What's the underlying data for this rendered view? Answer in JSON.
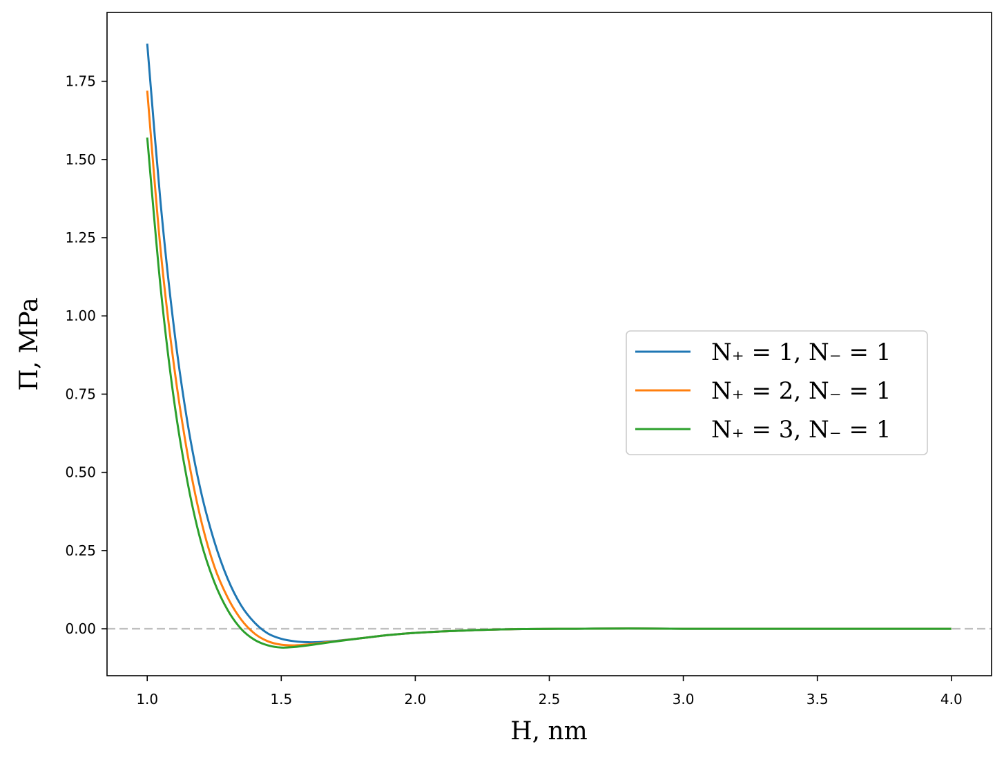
{
  "chart_data": {
    "type": "line",
    "xlabel": "H, nm",
    "ylabel": "Π, MPa",
    "xlim": [
      0.85,
      4.15
    ],
    "ylim": [
      -0.15,
      1.97
    ],
    "xticks": [
      1.0,
      1.5,
      2.0,
      2.5,
      3.0,
      3.5,
      4.0
    ],
    "xtick_labels": [
      "1.0",
      "1.5",
      "2.0",
      "2.5",
      "3.0",
      "3.5",
      "4.0"
    ],
    "yticks": [
      0.0,
      0.25,
      0.5,
      0.75,
      1.0,
      1.25,
      1.5,
      1.75
    ],
    "ytick_labels": [
      "0.00",
      "0.25",
      "0.50",
      "0.75",
      "1.00",
      "1.25",
      "1.50",
      "1.75"
    ],
    "grid": false,
    "legend_position": "center-right",
    "reference_line": {
      "y": 0.0,
      "style": "dashed",
      "color": "#bfbfbf"
    },
    "series": [
      {
        "name": "N₊ = 1, N₋ = 1",
        "color": "#1f77b4",
        "x": [
          1.0,
          1.05,
          1.1,
          1.15,
          1.2,
          1.25,
          1.3,
          1.35,
          1.4,
          1.45,
          1.5,
          1.55,
          1.6,
          1.65,
          1.7,
          1.8,
          1.9,
          2.0,
          2.2,
          2.4,
          2.6,
          2.8,
          3.0,
          3.5,
          4.0
        ],
        "y": [
          1.87,
          1.36,
          0.96,
          0.66,
          0.44,
          0.28,
          0.16,
          0.075,
          0.02,
          -0.015,
          -0.032,
          -0.04,
          -0.043,
          -0.042,
          -0.039,
          -0.03,
          -0.02,
          -0.013,
          -0.005,
          -0.001,
          0.0,
          0.001,
          0.0,
          0.0,
          0.0
        ]
      },
      {
        "name": "N₊ = 2, N₋ = 1",
        "color": "#ff7f0e",
        "x": [
          1.0,
          1.05,
          1.1,
          1.15,
          1.2,
          1.25,
          1.3,
          1.35,
          1.4,
          1.45,
          1.5,
          1.55,
          1.6,
          1.65,
          1.7,
          1.8,
          1.9,
          2.0,
          2.2,
          2.4,
          2.6,
          2.8,
          3.0,
          3.5,
          4.0
        ],
        "y": [
          1.72,
          1.21,
          0.84,
          0.56,
          0.35,
          0.2,
          0.1,
          0.03,
          -0.015,
          -0.04,
          -0.051,
          -0.053,
          -0.05,
          -0.045,
          -0.04,
          -0.03,
          -0.02,
          -0.013,
          -0.005,
          -0.001,
          0.0,
          0.001,
          0.0,
          0.0,
          0.0
        ]
      },
      {
        "name": "N₊ = 3, N₋ = 1",
        "color": "#2ca02c",
        "x": [
          1.0,
          1.05,
          1.1,
          1.15,
          1.2,
          1.25,
          1.3,
          1.35,
          1.4,
          1.45,
          1.5,
          1.55,
          1.6,
          1.65,
          1.7,
          1.8,
          1.9,
          2.0,
          2.2,
          2.4,
          2.6,
          2.8,
          3.0,
          3.5,
          4.0
        ],
        "y": [
          1.57,
          1.09,
          0.73,
          0.47,
          0.28,
          0.15,
          0.06,
          0.0,
          -0.035,
          -0.053,
          -0.06,
          -0.058,
          -0.053,
          -0.047,
          -0.041,
          -0.03,
          -0.02,
          -0.013,
          -0.005,
          -0.001,
          0.0,
          0.001,
          0.0,
          0.0,
          0.0
        ]
      }
    ]
  }
}
